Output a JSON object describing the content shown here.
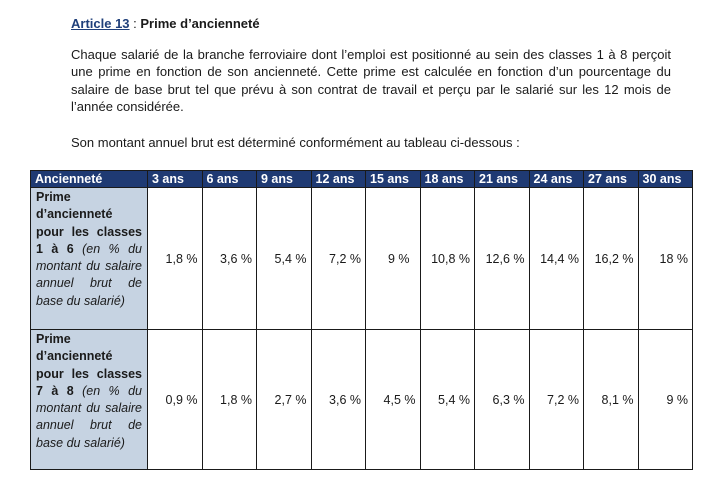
{
  "article": {
    "number": "Article 13",
    "separator": " : ",
    "title": "Prime d’ancienneté"
  },
  "paragraphs": [
    "Chaque salarié de la branche ferroviaire dont l’emploi est positionné au sein des classes 1 à 8 perçoit une prime en fonction de son ancienneté. Cette prime est calculée en fonction d’un pourcentage du salaire de base brut tel que prévu à son contrat de travail et perçu par le salarié sur les 12 mois de l’année considérée.",
    "Son montant annuel brut est déterminé conformément au tableau ci-dessous :"
  ],
  "table": {
    "header_label": "Ancienneté",
    "columns": [
      "3 ans",
      "6 ans",
      "9 ans",
      "12 ans",
      "15 ans",
      "18 ans",
      "21 ans",
      "24 ans",
      "27 ans",
      "30 ans"
    ],
    "rows": [
      {
        "label_bold": "Prime d’ancienneté pour les classes 1 à 6",
        "label_italic": " (en % du montant du salaire annuel brut de base du salarié)",
        "values": [
          "1,8 %",
          "3,6 %",
          "5,4 %",
          "7,2 %",
          "9  %",
          "10,8 %",
          "12,6 %",
          "14,4 %",
          "16,2 %",
          "18 %"
        ]
      },
      {
        "label_bold": "Prime d’ancienneté pour les classes 7 à 8",
        "label_italic": " (en % du montant du salaire annuel brut de base du salarié)",
        "values": [
          "0,9 %",
          "1,8 %",
          "2,7 %",
          "3,6 %",
          "4,5 %",
          "5,4 %",
          "6,3 %",
          "7,2 %",
          "8,1 %",
          "9 %"
        ]
      }
    ]
  }
}
